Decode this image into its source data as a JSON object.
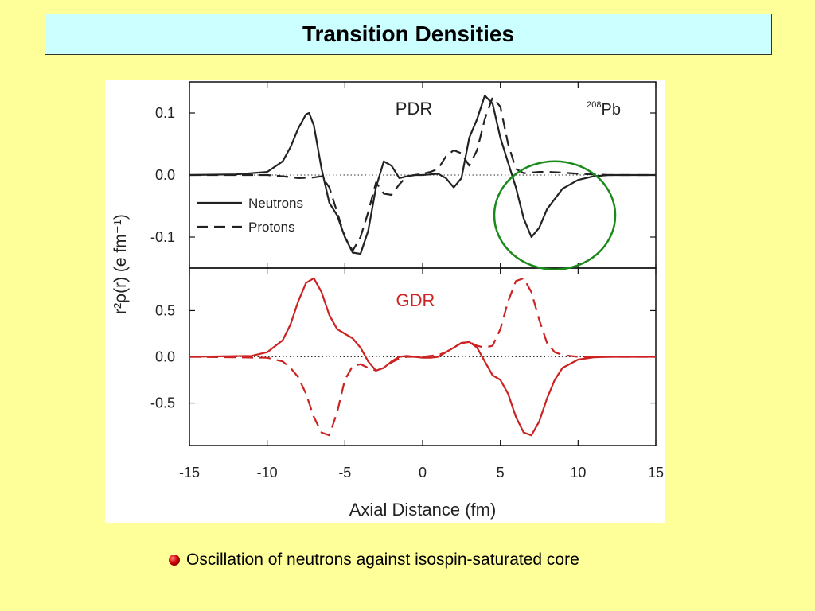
{
  "slide": {
    "title": "Transition Densities",
    "caption": "Oscillation of neutrons against isospin-saturated core"
  },
  "chart_data": [
    {
      "type": "line",
      "panel": "top",
      "annotation_left": "PDR",
      "annotation_right": "Pb",
      "annotation_right_superscript": "208",
      "ylabel": "r²ρ(r) (e fm⁻¹)",
      "ylim": [
        -0.15,
        0.15
      ],
      "yticks": [
        0.1,
        0.0,
        -0.1
      ],
      "ytick_labels": [
        "0.1",
        "0.0",
        "-0.1"
      ],
      "xlim": [
        -15,
        15
      ],
      "legend": "lower-left",
      "highlight": {
        "shape": "circle",
        "color": "#1a8a1a",
        "center_x": 8.5,
        "center_y": -0.065
      },
      "series": [
        {
          "name": "Neutrons",
          "style": "solid",
          "color": "#222222",
          "x": [
            -15,
            -12,
            -10,
            -9,
            -8.5,
            -8,
            -7.5,
            -7.3,
            -7,
            -6.5,
            -6,
            -5.5,
            -5,
            -4.5,
            -4,
            -3.5,
            -3,
            -2.5,
            -2,
            -1.5,
            -1,
            -0.5,
            0,
            0.5,
            1,
            1.5,
            2,
            2.5,
            3,
            3.5,
            4,
            4.5,
            5,
            5.5,
            6,
            6.5,
            7,
            7.5,
            8,
            9,
            10,
            11,
            12,
            15
          ],
          "y": [
            0,
            0.001,
            0.005,
            0.022,
            0.045,
            0.075,
            0.098,
            0.1,
            0.08,
            0.01,
            -0.045,
            -0.065,
            -0.1,
            -0.125,
            -0.127,
            -0.09,
            -0.02,
            0.022,
            0.015,
            -0.005,
            -0.002,
            0,
            0,
            0.001,
            0.002,
            -0.005,
            -0.02,
            -0.005,
            0.06,
            0.09,
            0.128,
            0.115,
            0.06,
            0.02,
            -0.02,
            -0.07,
            -0.1,
            -0.085,
            -0.055,
            -0.022,
            -0.008,
            -0.002,
            0,
            0
          ]
        },
        {
          "name": "Protons",
          "style": "dashed",
          "color": "#222222",
          "x": [
            -15,
            -10,
            -9,
            -8,
            -7,
            -6.5,
            -6,
            -5.5,
            -5,
            -4.5,
            -4,
            -3.5,
            -3,
            -2.5,
            -2,
            -1.5,
            -1,
            -0.5,
            0,
            0.5,
            1,
            1.5,
            2,
            2.5,
            3,
            3.5,
            4,
            4.5,
            5,
            5.5,
            6,
            6.5,
            7,
            7.5,
            8,
            9,
            10,
            11,
            12,
            15
          ],
          "y": [
            0,
            0,
            -0.002,
            -0.005,
            -0.004,
            -0.002,
            -0.02,
            -0.06,
            -0.1,
            -0.122,
            -0.1,
            -0.06,
            -0.012,
            -0.03,
            -0.032,
            -0.015,
            -0.002,
            0,
            0.002,
            0.005,
            0.01,
            0.03,
            0.04,
            0.035,
            0.015,
            0.04,
            0.09,
            0.125,
            0.11,
            0.05,
            0.01,
            0.003,
            0.004,
            0.005,
            0.005,
            0.004,
            0.002,
            0.001,
            0,
            0
          ]
        }
      ]
    },
    {
      "type": "line",
      "panel": "bottom",
      "annotation_left": "GDR",
      "xlabel": "Axial Distance (fm)",
      "ylim": [
        -0.96,
        0.96
      ],
      "yticks": [
        0.5,
        0.0,
        -0.5
      ],
      "ytick_labels": [
        "0.5",
        "0.0",
        "-0.5"
      ],
      "xlim": [
        -15,
        15
      ],
      "xticks": [
        -15,
        -10,
        -5,
        0,
        5,
        10,
        15
      ],
      "xtick_labels": [
        "-15",
        "-10",
        "-5",
        "0",
        "5",
        "10",
        "15"
      ],
      "series": [
        {
          "name": "Neutrons",
          "style": "solid",
          "color": "#cc2222",
          "x": [
            -15,
            -11,
            -10,
            -9,
            -8.5,
            -8,
            -7.5,
            -7,
            -6.5,
            -6,
            -5.5,
            -5,
            -4.5,
            -4,
            -3.5,
            -3,
            -2.5,
            -2,
            -1.5,
            -1,
            -0.5,
            0,
            0.5,
            1,
            1.5,
            2,
            2.5,
            3,
            3.5,
            4,
            4.5,
            5,
            5.5,
            6,
            6.5,
            7,
            7.5,
            8,
            8.5,
            9,
            10,
            11,
            12,
            15
          ],
          "y": [
            0,
            0.01,
            0.05,
            0.18,
            0.35,
            0.6,
            0.8,
            0.85,
            0.7,
            0.45,
            0.3,
            0.25,
            0.2,
            0.1,
            -0.05,
            -0.15,
            -0.12,
            -0.05,
            0,
            0.01,
            0,
            -0.01,
            -0.01,
            0,
            0.05,
            0.1,
            0.15,
            0.16,
            0.1,
            -0.05,
            -0.2,
            -0.25,
            -0.4,
            -0.65,
            -0.82,
            -0.85,
            -0.7,
            -0.45,
            -0.25,
            -0.12,
            -0.03,
            -0.005,
            0,
            0
          ]
        },
        {
          "name": "Protons",
          "style": "dashed",
          "color": "#cc2222",
          "x": [
            -15,
            -10,
            -9,
            -8.5,
            -8,
            -7.5,
            -7,
            -6.5,
            -6,
            -5.5,
            -5,
            -4.5,
            -4,
            -3.5,
            -3,
            -2.5,
            -2,
            -1.5,
            -1,
            0,
            1,
            1.5,
            2,
            2.5,
            3,
            3.5,
            4,
            4.5,
            5,
            5.5,
            6,
            6.5,
            7,
            7.5,
            8,
            8.5,
            9,
            10,
            11,
            15
          ],
          "y": [
            0,
            -0.01,
            -0.05,
            -0.12,
            -0.22,
            -0.4,
            -0.65,
            -0.82,
            -0.85,
            -0.6,
            -0.25,
            -0.1,
            -0.08,
            -0.12,
            -0.15,
            -0.12,
            -0.06,
            -0.02,
            0,
            0,
            0.02,
            0.05,
            0.1,
            0.15,
            0.16,
            0.12,
            0.1,
            0.12,
            0.3,
            0.6,
            0.82,
            0.85,
            0.7,
            0.4,
            0.15,
            0.05,
            0.02,
            0,
            0,
            0
          ]
        }
      ]
    }
  ]
}
